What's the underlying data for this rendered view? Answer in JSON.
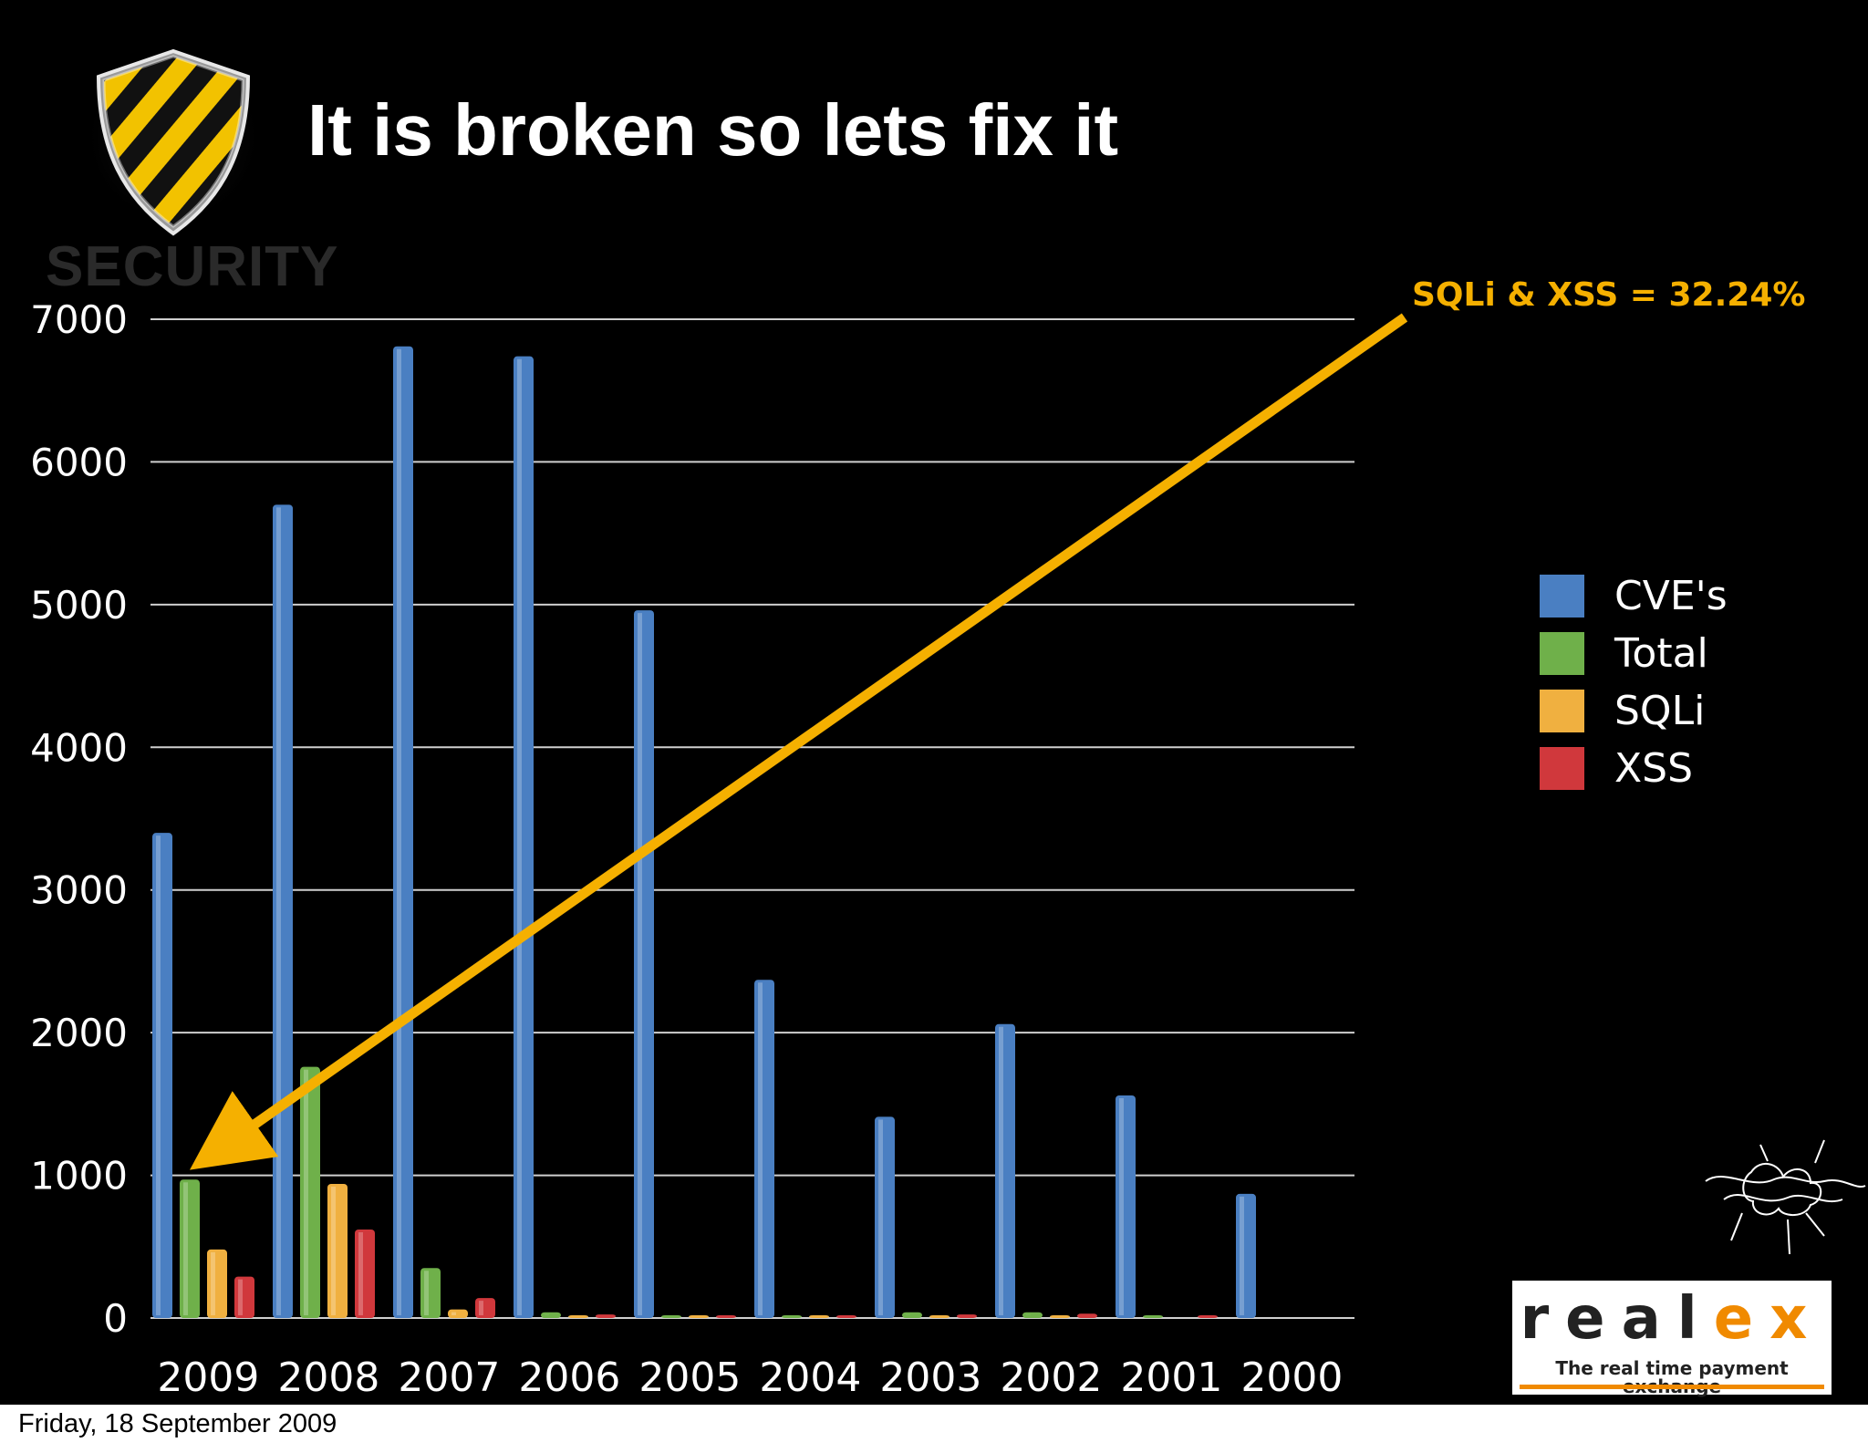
{
  "slide": {
    "title": "It is broken so lets fix it",
    "security_label": "SECURITY",
    "annotation": "SQLi & XSS = 32.24%",
    "date": "Friday, 18 September 2009",
    "logo": {
      "word_a": "real",
      "word_b": "ex",
      "tagline": "The real time payment exchange"
    }
  },
  "colors": {
    "background": "#000000",
    "accent": "#f5b000",
    "logo_orange": "#f08a00"
  },
  "chart_data": {
    "type": "bar",
    "title": "",
    "xlabel": "",
    "ylabel": "",
    "ylim": [
      0,
      7000
    ],
    "yticks": [
      0,
      1000,
      2000,
      3000,
      4000,
      5000,
      6000,
      7000
    ],
    "grid": true,
    "legend_position": "right",
    "categories": [
      "2009",
      "2008",
      "2007",
      "2006",
      "2005",
      "2004",
      "2003",
      "2002",
      "2001",
      "2000"
    ],
    "series": [
      {
        "name": "CVE's",
        "color": "#4a7fc2",
        "values": [
          3400,
          5700,
          6810,
          6740,
          4960,
          2370,
          1410,
          2060,
          1560,
          870
        ]
      },
      {
        "name": "Total",
        "color": "#6fb04a",
        "values": [
          970,
          1760,
          350,
          40,
          10,
          15,
          40,
          40,
          5,
          0
        ]
      },
      {
        "name": "SQLi",
        "color": "#f0b040",
        "values": [
          480,
          940,
          60,
          10,
          5,
          5,
          10,
          10,
          0,
          0
        ]
      },
      {
        "name": "XSS",
        "color": "#d0383c",
        "values": [
          290,
          620,
          140,
          25,
          5,
          10,
          25,
          30,
          5,
          0
        ]
      }
    ]
  }
}
